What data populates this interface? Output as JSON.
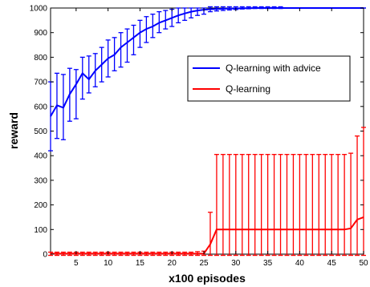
{
  "chart_data": {
    "type": "line",
    "xlabel": "x100 episodes",
    "ylabel": "reward",
    "xlim": [
      1,
      50
    ],
    "ylim": [
      0,
      1000
    ],
    "xticks": [
      5,
      10,
      15,
      20,
      25,
      30,
      35,
      40,
      45,
      50
    ],
    "yticks": [
      0,
      100,
      200,
      300,
      400,
      500,
      600,
      700,
      800,
      900,
      1000
    ],
    "grid": false,
    "legend_position": "top-right",
    "series": [
      {
        "name": "Q-learning with advice",
        "color": "#0000ff",
        "x": [
          1,
          2,
          3,
          4,
          5,
          6,
          7,
          8,
          9,
          10,
          11,
          12,
          13,
          14,
          15,
          16,
          17,
          18,
          19,
          20,
          21,
          22,
          23,
          24,
          25,
          26,
          27,
          28,
          29,
          30,
          31,
          32,
          33,
          34,
          35,
          36,
          37,
          38,
          39,
          40,
          41,
          42,
          43,
          44,
          45,
          46,
          47,
          48,
          49,
          50
        ],
        "y": [
          560,
          605,
          595,
          650,
          690,
          735,
          710,
          745,
          770,
          795,
          810,
          840,
          860,
          880,
          900,
          915,
          925,
          940,
          950,
          960,
          970,
          978,
          985,
          990,
          993,
          995,
          996,
          997,
          998,
          998,
          999,
          999,
          1000,
          1000,
          1000,
          1000,
          1000,
          1000,
          1000,
          1000,
          1000,
          1000,
          1000,
          1000,
          1000,
          1000,
          1000,
          1000,
          1000,
          1000
        ],
        "err_low": [
          420,
          470,
          465,
          540,
          550,
          630,
          655,
          680,
          700,
          720,
          745,
          760,
          780,
          810,
          840,
          860,
          880,
          900,
          915,
          925,
          940,
          950,
          960,
          970,
          975,
          985,
          988,
          990,
          992,
          994,
          996,
          997,
          998,
          998,
          998,
          998,
          998,
          1000,
          1000,
          1000,
          1000,
          1000,
          1000,
          1000,
          1000,
          1000,
          1000,
          1000,
          1000,
          1000
        ],
        "err_high": [
          700,
          735,
          730,
          755,
          750,
          800,
          805,
          815,
          840,
          870,
          880,
          900,
          915,
          930,
          950,
          965,
          975,
          985,
          990,
          995,
          1000,
          1000,
          1000,
          1000,
          1000,
          1005,
          1005,
          1005,
          1005,
          1005,
          1005,
          1005,
          1005,
          1005,
          1005,
          1005,
          1005,
          1000,
          1000,
          1000,
          1000,
          1000,
          1000,
          1000,
          1000,
          1000,
          1000,
          1000,
          1000,
          1000
        ]
      },
      {
        "name": "Q-learning",
        "color": "#ff0000",
        "x": [
          1,
          2,
          3,
          4,
          5,
          6,
          7,
          8,
          9,
          10,
          11,
          12,
          13,
          14,
          15,
          16,
          17,
          18,
          19,
          20,
          21,
          22,
          23,
          24,
          25,
          26,
          27,
          28,
          29,
          30,
          31,
          32,
          33,
          34,
          35,
          36,
          37,
          38,
          39,
          40,
          41,
          42,
          43,
          44,
          45,
          46,
          47,
          48,
          49,
          50
        ],
        "y": [
          2,
          2,
          2,
          2,
          2,
          2,
          2,
          2,
          2,
          2,
          2,
          2,
          2,
          2,
          2,
          2,
          2,
          2,
          2,
          2,
          2,
          2,
          2,
          2,
          2,
          40,
          100,
          100,
          100,
          100,
          100,
          100,
          100,
          100,
          100,
          100,
          100,
          100,
          100,
          100,
          100,
          100,
          100,
          100,
          100,
          100,
          100,
          105,
          140,
          150
        ],
        "err_low": [
          -5,
          -5,
          -5,
          -5,
          -5,
          -5,
          -5,
          -5,
          -5,
          -5,
          -5,
          -5,
          -5,
          -5,
          -5,
          -5,
          -5,
          -5,
          -5,
          -5,
          -5,
          -5,
          -5,
          -5,
          -5,
          -5,
          -5,
          -5,
          -5,
          -5,
          -5,
          -5,
          -5,
          -5,
          -5,
          -5,
          -5,
          -5,
          -5,
          -5,
          -5,
          -5,
          -5,
          -5,
          -5,
          -5,
          -5,
          -5,
          -5,
          -5
        ],
        "err_high": [
          8,
          8,
          8,
          8,
          8,
          8,
          8,
          8,
          8,
          8,
          8,
          8,
          8,
          8,
          8,
          8,
          8,
          8,
          8,
          8,
          8,
          8,
          8,
          10,
          12,
          170,
          405,
          405,
          405,
          405,
          405,
          405,
          405,
          405,
          405,
          405,
          405,
          405,
          405,
          405,
          405,
          405,
          405,
          405,
          405,
          405,
          405,
          410,
          480,
          515
        ]
      }
    ]
  }
}
